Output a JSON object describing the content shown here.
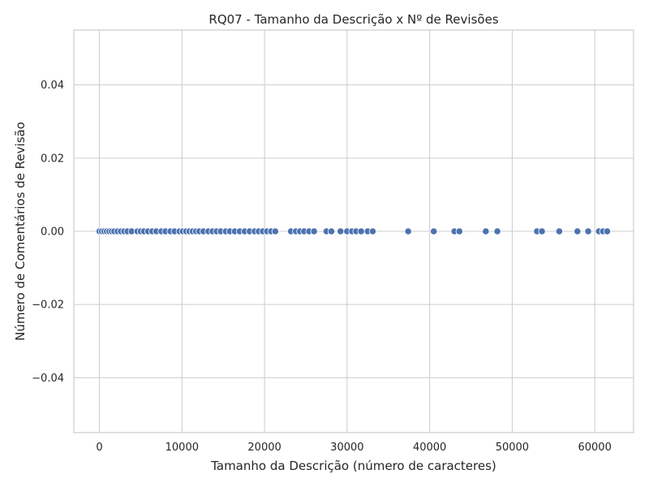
{
  "chart_data": {
    "type": "scatter",
    "title": "RQ07 - Tamanho da Descrição x Nº de Revisões",
    "xlabel": "Tamanho da Descrição (número de caracteres)",
    "ylabel": "Número de Comentários de Revisão",
    "xlim": [
      -3100,
      64700
    ],
    "ylim": [
      -0.055,
      0.055
    ],
    "xticks": [
      0,
      10000,
      20000,
      30000,
      40000,
      50000,
      60000
    ],
    "xtick_labels": [
      "0",
      "10000",
      "20000",
      "30000",
      "40000",
      "50000",
      "60000"
    ],
    "yticks": [
      -0.04,
      -0.02,
      0.0,
      0.02,
      0.04
    ],
    "ytick_labels": [
      "−0.04",
      "−0.02",
      "0.00",
      "0.02",
      "0.04"
    ],
    "grid": true,
    "marker_color": "#4c72b0",
    "x": [
      0,
      300,
      600,
      900,
      1200,
      1500,
      1800,
      2200,
      2600,
      3000,
      3400,
      3900,
      4600,
      5000,
      5400,
      5900,
      6400,
      6900,
      7500,
      8000,
      8600,
      9100,
      9700,
      10100,
      10500,
      10900,
      11300,
      11700,
      12100,
      12600,
      13200,
      13700,
      14200,
      14700,
      15300,
      15800,
      16400,
      17000,
      17600,
      18200,
      18800,
      19300,
      19800,
      20300,
      20800,
      21300,
      23200,
      23800,
      24300,
      24800,
      25400,
      26000,
      27500,
      28100,
      29200,
      30000,
      30600,
      31100,
      31700,
      32500,
      33100,
      37400,
      40500,
      43000,
      43600,
      46800,
      48200,
      53000,
      53600,
      55700,
      57900,
      59200,
      60500,
      61000,
      61500
    ],
    "y": [
      0,
      0,
      0,
      0,
      0,
      0,
      0,
      0,
      0,
      0,
      0,
      0,
      0,
      0,
      0,
      0,
      0,
      0,
      0,
      0,
      0,
      0,
      0,
      0,
      0,
      0,
      0,
      0,
      0,
      0,
      0,
      0,
      0,
      0,
      0,
      0,
      0,
      0,
      0,
      0,
      0,
      0,
      0,
      0,
      0,
      0,
      0,
      0,
      0,
      0,
      0,
      0,
      0,
      0,
      0,
      0,
      0,
      0,
      0,
      0,
      0,
      0,
      0,
      0,
      0,
      0,
      0,
      0,
      0,
      0,
      0,
      0,
      0,
      0,
      0
    ]
  }
}
